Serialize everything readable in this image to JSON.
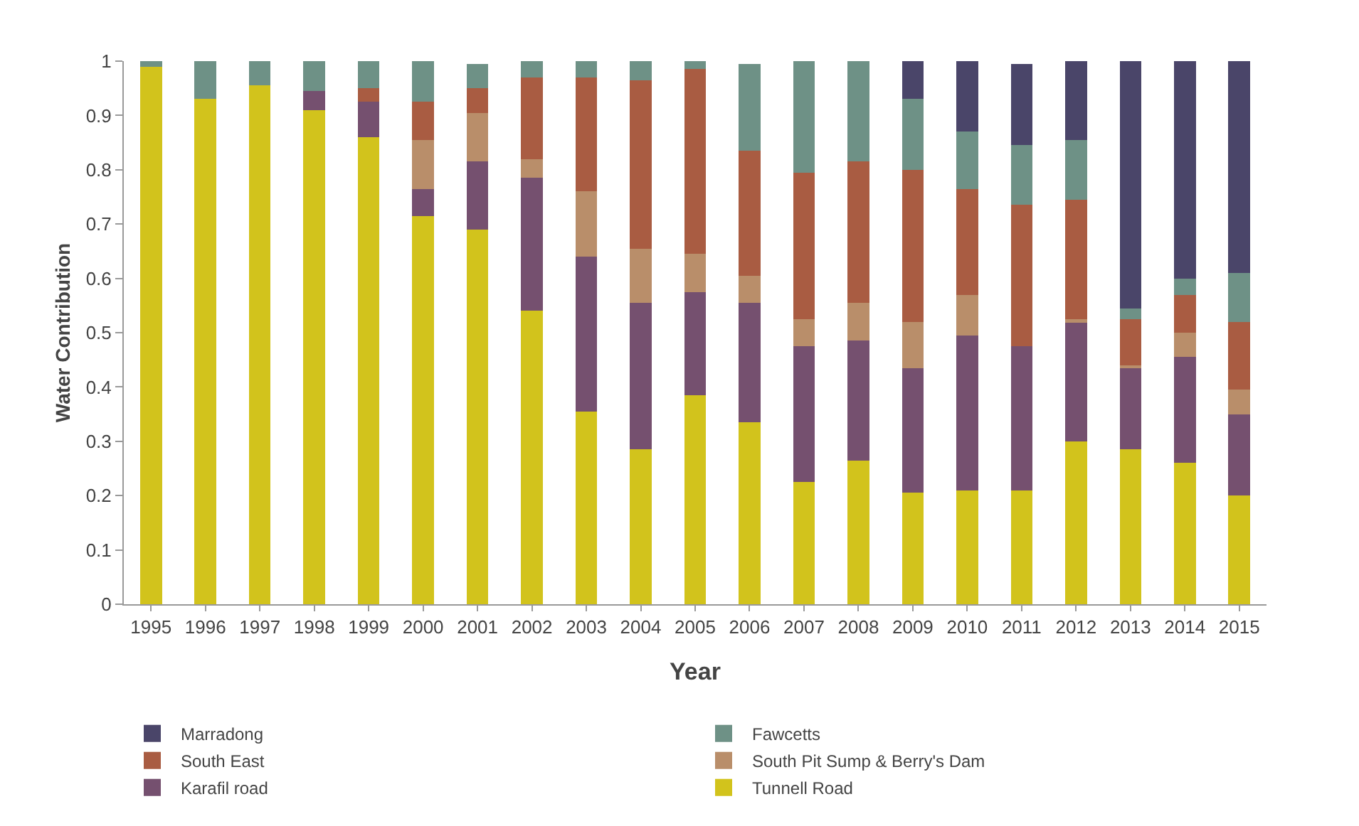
{
  "chart_data": {
    "type": "bar",
    "stacked": true,
    "xlabel": "Year",
    "ylabel": "Water Contribution",
    "categories": [
      "1995",
      "1996",
      "1997",
      "1998",
      "1999",
      "2000",
      "2001",
      "2002",
      "2003",
      "2004",
      "2005",
      "2006",
      "2007",
      "2008",
      "2009",
      "2010",
      "2011",
      "2012",
      "2013",
      "2014",
      "2015"
    ],
    "series": [
      {
        "name": "Tunnell Road",
        "color": "#d2c31c",
        "values": [
          0.99,
          0.93,
          0.955,
          0.91,
          0.86,
          0.715,
          0.69,
          0.54,
          0.355,
          0.285,
          0.385,
          0.335,
          0.225,
          0.265,
          0.205,
          0.21,
          0.21,
          0.3,
          0.285,
          0.26,
          0.2
        ]
      },
      {
        "name": "Karafil road",
        "color": "#75506f",
        "values": [
          0,
          0,
          0,
          0.035,
          0.065,
          0.05,
          0.125,
          0.245,
          0.285,
          0.27,
          0.19,
          0.22,
          0.25,
          0.22,
          0.23,
          0.285,
          0.265,
          0.22,
          0.15,
          0.195,
          0.15
        ]
      },
      {
        "name": "South Pit Sump & Berry's Dam",
        "color": "#b98e6a",
        "values": [
          0,
          0,
          0,
          0,
          0,
          0.09,
          0.09,
          0.035,
          0.12,
          0.1,
          0.07,
          0.05,
          0.05,
          0.07,
          0.085,
          0.075,
          0,
          0.005,
          0.005,
          0.045,
          0.045
        ]
      },
      {
        "name": "South East",
        "color": "#a95c42",
        "values": [
          0,
          0,
          0,
          0,
          0.025,
          0.07,
          0.045,
          0.15,
          0.21,
          0.31,
          0.34,
          0.23,
          0.27,
          0.26,
          0.28,
          0.195,
          0.26,
          0.22,
          0.085,
          0.07,
          0.125
        ]
      },
      {
        "name": "Fawcetts",
        "color": "#6e9186",
        "values": [
          0.01,
          0.07,
          0.045,
          0.055,
          0.05,
          0.075,
          0.045,
          0.03,
          0.03,
          0.035,
          0.015,
          0.16,
          0.205,
          0.185,
          0.13,
          0.105,
          0.11,
          0.11,
          0.02,
          0.03,
          0.09
        ]
      },
      {
        "name": "Marradong",
        "color": "#4a4569",
        "values": [
          0,
          0,
          0,
          0,
          0,
          0,
          0,
          0,
          0,
          0,
          0,
          0,
          0,
          0,
          0.07,
          0.13,
          0.15,
          0.145,
          0.455,
          0.4,
          0.39
        ]
      }
    ],
    "ylim": [
      0,
      1
    ],
    "yticks": [
      0,
      0.1,
      0.2,
      0.3,
      0.4,
      0.5,
      0.6,
      0.7,
      0.8,
      0.9,
      1
    ],
    "grid": false,
    "legend": "bottom"
  }
}
